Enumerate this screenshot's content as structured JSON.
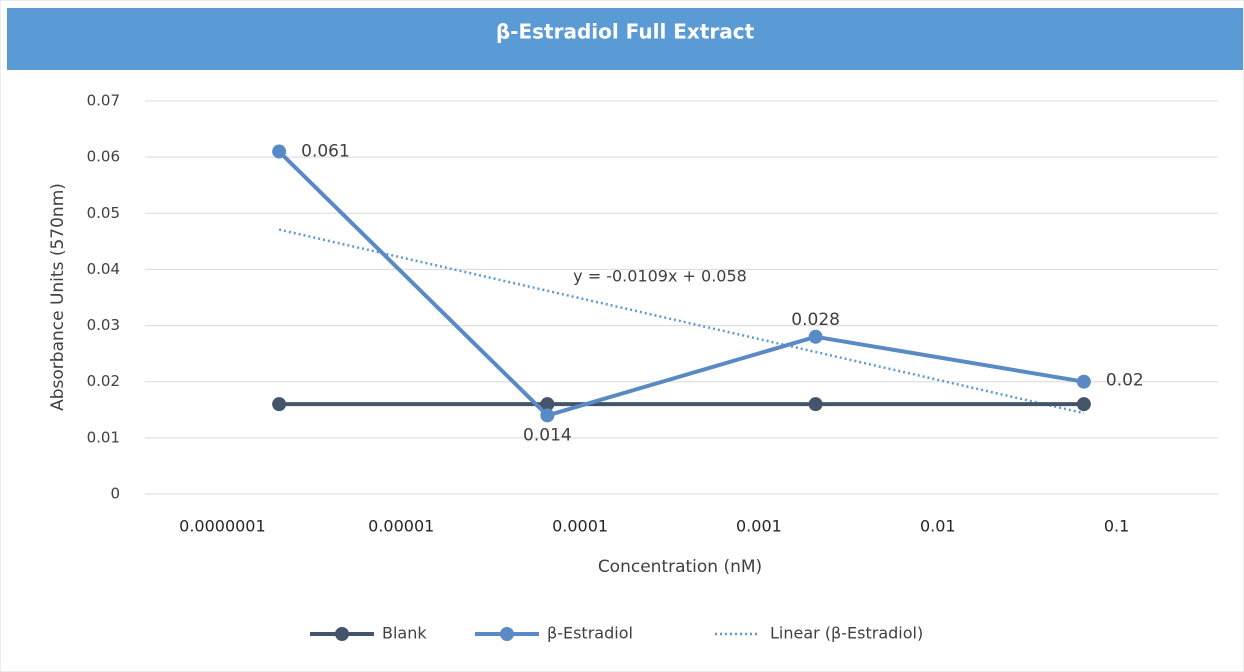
{
  "chart_data": {
    "type": "line",
    "title": "β-Estradiol Full Extract",
    "x_label": "Concentration (nM)",
    "y_label": "Absorbance Units (570nm)",
    "categories": [
      null,
      null,
      null,
      null
    ],
    "x_tick_labels": [
      "0.0000001",
      "0.00001",
      "0.0001",
      "0.001",
      "0.01",
      "0.1"
    ],
    "series": [
      {
        "name": "Blank",
        "color": "#44546a",
        "values": [
          0.016,
          0.016,
          0.016,
          0.016
        ]
      },
      {
        "name": "β-Estradiol",
        "color": "#5a8ac6",
        "values": [
          0.061,
          0.014,
          0.028,
          0.02
        ],
        "value_labels": [
          "0.061",
          "0.014",
          "0.028",
          "0.02"
        ]
      }
    ],
    "trendline": {
      "name": "Linear (β-Estradiol)",
      "color": "#5b9bd5",
      "slope": -0.0109,
      "intercept": 0.058,
      "equation": "y = -0.0109x + 0.058"
    },
    "ylim": [
      0,
      0.07
    ],
    "yticks": [
      0,
      0.01,
      0.02,
      0.03,
      0.04,
      0.05,
      0.06,
      0.07
    ],
    "grid": true,
    "legend": "bottom"
  }
}
